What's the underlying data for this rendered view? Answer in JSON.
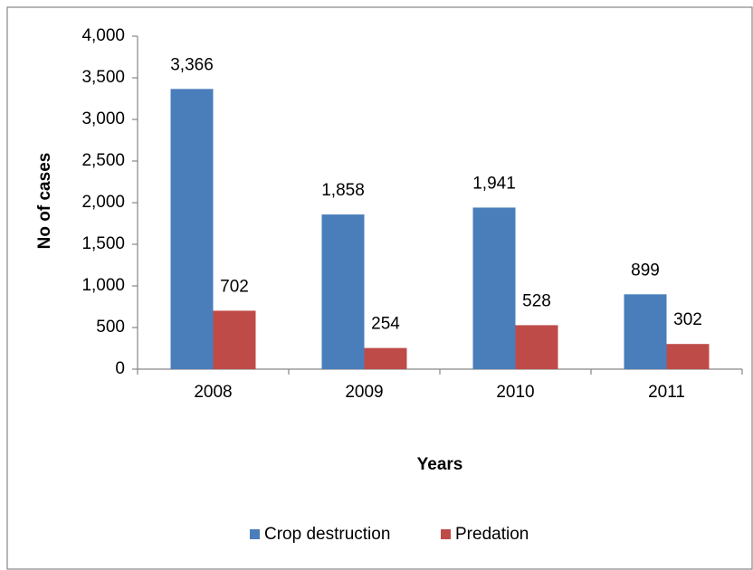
{
  "chart_data": {
    "type": "bar",
    "categories": [
      "2008",
      "2009",
      "2010",
      "2011"
    ],
    "series": [
      {
        "name": "Crop destruction",
        "color": "#4a7ebb",
        "values": [
          3366,
          1858,
          1941,
          899
        ],
        "value_labels": [
          "3,366",
          "1,858",
          "1,941",
          "899"
        ]
      },
      {
        "name": "Predation",
        "color": "#be4b48",
        "values": [
          702,
          254,
          528,
          302
        ],
        "value_labels": [
          "702",
          "254",
          "528",
          "302"
        ]
      }
    ],
    "xlabel": "Years",
    "ylabel": "No of cases",
    "ylim": [
      0,
      4000
    ],
    "yticks": [
      0,
      500,
      {
        "value": 1000,
        "label": "1,000"
      },
      {
        "value": 1500,
        "label": "1,500"
      },
      {
        "value": 2000,
        "label": "2,000"
      },
      {
        "value": 2500,
        "label": "2,500"
      },
      {
        "value": 3000,
        "label": "3,000"
      },
      {
        "value": 3500,
        "label": "3,500"
      },
      {
        "value": 4000,
        "label": "4,000"
      }
    ],
    "grid": false,
    "legend": "bottom"
  }
}
